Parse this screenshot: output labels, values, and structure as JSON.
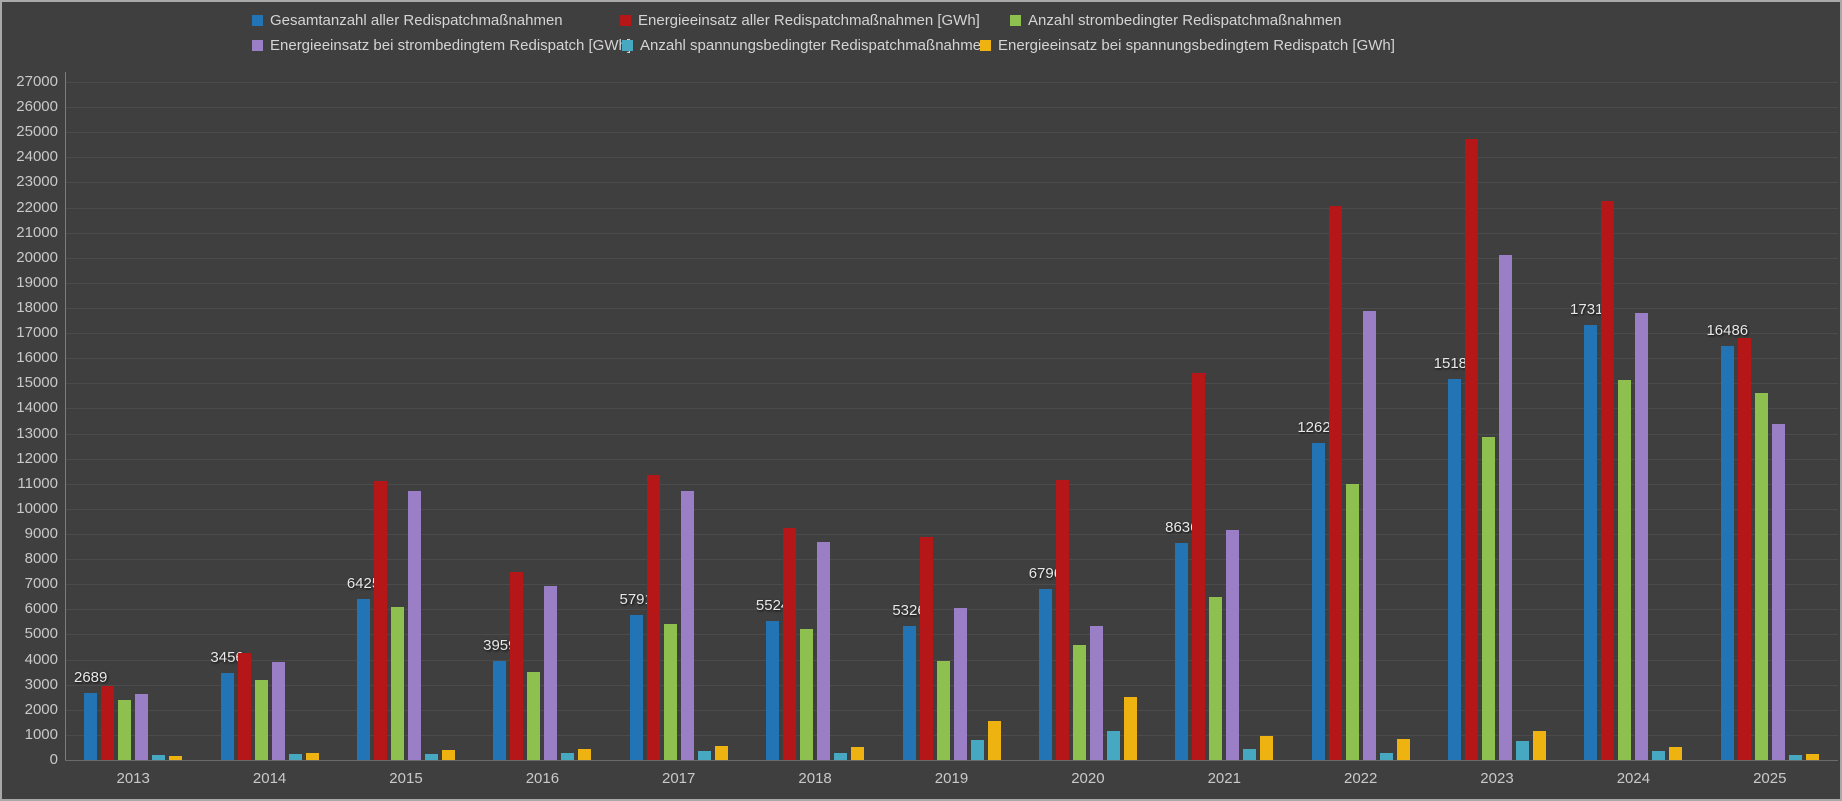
{
  "window": {
    "background_color": "#3f3f3f",
    "border_color": "#a9a9a9",
    "gridline_color": "#4b4b4b",
    "text_color": "#d4d4d4"
  },
  "chart_data": {
    "type": "bar",
    "title": "",
    "xlabel": "",
    "ylabel": "",
    "ylim": [
      0,
      27000
    ],
    "ytick_step": 1000,
    "grid": true,
    "legend_position": "top",
    "categories": [
      "2013",
      "2014",
      "2015",
      "2016",
      "2017",
      "2018",
      "2019",
      "2020",
      "2021",
      "2022",
      "2023",
      "2024",
      "2025"
    ],
    "series": [
      {
        "name": "Gesamtanzahl aller Redispatchmaßnahmen",
        "color": "#2274b5",
        "show_value_labels": true,
        "values": [
          2689,
          3456,
          6425,
          3959,
          5791,
          5524,
          5326,
          6796,
          8636,
          12625,
          15185,
          17312,
          16486
        ]
      },
      {
        "name": "Energieeinsatz aller Redispatchmaßnahmen [GWh]",
        "color": "#b51617",
        "show_value_labels": false,
        "values": [
          2950,
          4250,
          11100,
          7500,
          11350,
          9250,
          8900,
          11150,
          15400,
          22050,
          24750,
          22250,
          16800
        ]
      },
      {
        "name": "Anzahl strombedingter Redispatchmaßnahmen",
        "color": "#8dc04f",
        "show_value_labels": false,
        "values": [
          2400,
          3200,
          6100,
          3500,
          5400,
          5200,
          3950,
          4600,
          6500,
          11000,
          12850,
          15150,
          14600
        ]
      },
      {
        "name": "Energieeinsatz bei strombedingtem Redispatch [GWh]",
        "color": "#9a7fc6",
        "show_value_labels": false,
        "values": [
          2650,
          3900,
          10700,
          6950,
          10700,
          8700,
          6050,
          5350,
          9150,
          17900,
          20100,
          17800,
          13400
        ]
      },
      {
        "name": "Anzahl spannungsbedingter Redispatchmaßnahmen",
        "color": "#47a8c2",
        "show_value_labels": false,
        "values": [
          220,
          250,
          250,
          300,
          350,
          300,
          800,
          1150,
          450,
          300,
          750,
          350,
          200
        ]
      },
      {
        "name": "Energieeinsatz bei spannungsbedingtem Redispatch [GWh]",
        "color": "#eeb211",
        "show_value_labels": false,
        "values": [
          180,
          300,
          400,
          450,
          550,
          500,
          1550,
          2500,
          950,
          850,
          1150,
          500,
          250
        ]
      }
    ]
  }
}
